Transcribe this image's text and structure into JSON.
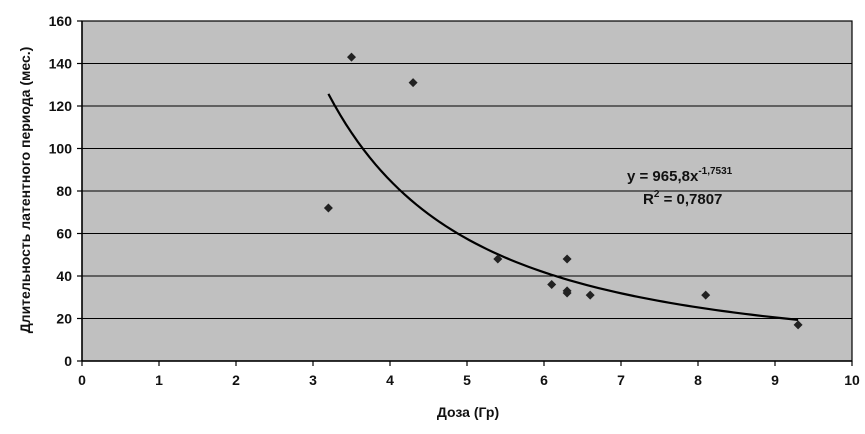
{
  "chart_data": {
    "type": "scatter",
    "xlabel": "Доза (Гр)",
    "ylabel": "Длительность латентного периода (мес.)",
    "xlim": [
      0,
      10
    ],
    "ylim": [
      0,
      160
    ],
    "xticks": [
      "0",
      "1",
      "2",
      "3",
      "4",
      "5",
      "6",
      "7",
      "8",
      "9",
      "10"
    ],
    "yticks": [
      "0",
      "20",
      "40",
      "60",
      "80",
      "100",
      "120",
      "140",
      "160"
    ],
    "grid": "horizontal",
    "plot_background": "#c0c0c0",
    "marker_color": "#222222",
    "line_color": "#000000",
    "points": [
      {
        "x": 3.2,
        "y": 72
      },
      {
        "x": 3.5,
        "y": 143
      },
      {
        "x": 4.3,
        "y": 131
      },
      {
        "x": 5.4,
        "y": 48
      },
      {
        "x": 6.1,
        "y": 36
      },
      {
        "x": 6.3,
        "y": 48
      },
      {
        "x": 6.3,
        "y": 33
      },
      {
        "x": 6.3,
        "y": 32
      },
      {
        "x": 6.6,
        "y": 31
      },
      {
        "x": 8.1,
        "y": 31
      },
      {
        "x": 9.3,
        "y": 17
      }
    ],
    "trendline": {
      "type": "power",
      "coefficient": 965.8,
      "exponent": -1.7531,
      "x_from": 3.2,
      "x_to": 9.3,
      "equation_main": "y = 965,8x",
      "equation_exp": "-1,7531",
      "r2_prefix": "R",
      "r2_sup": "2",
      "r2_value": " = 0,7807"
    }
  }
}
